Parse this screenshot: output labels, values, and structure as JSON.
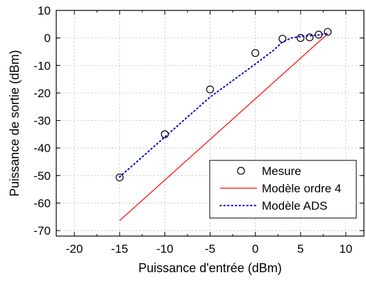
{
  "chart_data": {
    "type": "scatter",
    "title": "",
    "xlabel": "Puissance d'entrée (dBm)",
    "ylabel": "Puissance de sortie (dBm)",
    "xlim": [
      -22,
      12
    ],
    "ylim": [
      -72,
      10
    ],
    "xticks": [
      -20,
      -15,
      -10,
      -5,
      0,
      5,
      10
    ],
    "yticks": [
      10,
      0,
      -10,
      -20,
      -30,
      -40,
      -50,
      -60,
      -70
    ],
    "grid": true,
    "legend_position": "bottom-right",
    "series": [
      {
        "name": "Mesure",
        "style": "markers",
        "marker": "open-circle",
        "color": "#000000",
        "points": [
          [
            -15,
            -50.7
          ],
          [
            -10,
            -35
          ],
          [
            -5,
            -18.7
          ],
          [
            0,
            -5.5
          ],
          [
            3,
            -0.3
          ],
          [
            5,
            0
          ],
          [
            6,
            0.2
          ],
          [
            7,
            1.2
          ],
          [
            8,
            2.2
          ]
        ]
      },
      {
        "name": "Modèle ordre 4",
        "style": "solid",
        "color": "#ff0000",
        "points": [
          [
            -15,
            -66.4
          ],
          [
            8,
            1.5
          ]
        ]
      },
      {
        "name": "Modèle ADS",
        "style": "dotted",
        "color": "#0000cc",
        "points": [
          [
            -15,
            -50.5
          ],
          [
            -10,
            -36
          ],
          [
            -5,
            -21.5
          ],
          [
            0,
            -9.5
          ],
          [
            2,
            -4.5
          ],
          [
            3,
            -1.5
          ],
          [
            4,
            0
          ],
          [
            5,
            0.5
          ],
          [
            6,
            0.8
          ],
          [
            7,
            1.1
          ],
          [
            8,
            1.6
          ]
        ]
      }
    ]
  }
}
